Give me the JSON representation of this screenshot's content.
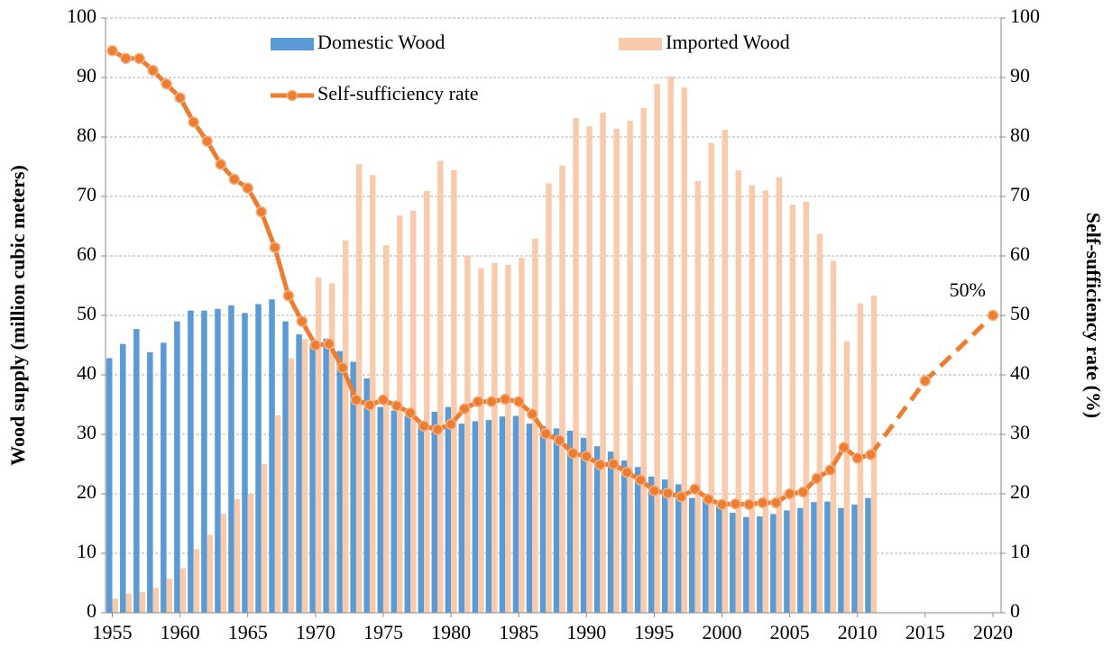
{
  "chart_data": {
    "type": "bar",
    "x": [
      1955,
      1956,
      1957,
      1958,
      1959,
      1960,
      1961,
      1962,
      1963,
      1964,
      1965,
      1966,
      1967,
      1968,
      1969,
      1970,
      1971,
      1972,
      1973,
      1974,
      1975,
      1976,
      1977,
      1978,
      1979,
      1980,
      1981,
      1982,
      1983,
      1984,
      1985,
      1986,
      1987,
      1988,
      1989,
      1990,
      1991,
      1992,
      1993,
      1994,
      1995,
      1996,
      1997,
      1998,
      1999,
      2000,
      2001,
      2002,
      2003,
      2004,
      2005,
      2006,
      2007,
      2008,
      2009,
      2010,
      2011
    ],
    "series": [
      {
        "name": "Domestic Wood",
        "type": "bar",
        "color": "#5b9bd5",
        "values": [
          42.8,
          45.2,
          47.7,
          43.8,
          45.4,
          49.0,
          50.8,
          50.8,
          51.1,
          51.7,
          50.4,
          51.9,
          52.7,
          49.0,
          46.8,
          45.4,
          46.1,
          44.0,
          42.2,
          39.4,
          34.6,
          34.0,
          33.1,
          32.0,
          33.8,
          34.6,
          31.8,
          32.2,
          32.4,
          33.0,
          33.1,
          31.8,
          31.4,
          31.0,
          30.6,
          29.4,
          28.0,
          27.1,
          25.6,
          24.5,
          22.9,
          22.4,
          21.6,
          19.3,
          19.1,
          18.0,
          16.8,
          16.1,
          16.2,
          16.6,
          17.2,
          17.6,
          18.6,
          18.7,
          17.6,
          18.2,
          19.3
        ]
      },
      {
        "name": "Imported Wood",
        "type": "bar",
        "color": "#f8cbad",
        "values": [
          2.4,
          3.2,
          3.5,
          4.2,
          5.7,
          7.5,
          10.7,
          13.1,
          16.6,
          19.1,
          20.0,
          25.0,
          33.2,
          42.8,
          46.0,
          56.4,
          55.4,
          62.6,
          75.4,
          73.6,
          61.8,
          66.8,
          67.6,
          70.9,
          76.0,
          74.4,
          60.0,
          57.9,
          58.8,
          58.5,
          59.7,
          62.9,
          72.2,
          75.2,
          83.2,
          81.8,
          84.1,
          81.4,
          82.7,
          84.9,
          88.9,
          90.2,
          88.3,
          72.6,
          79.0,
          81.2,
          74.4,
          71.9,
          71.0,
          73.2,
          68.6,
          69.1,
          63.7,
          59.2,
          45.6,
          52.0,
          53.3
        ]
      },
      {
        "name": "Self-sufficiency rate",
        "type": "line",
        "axis": "y2",
        "color": "#ed7d31",
        "values": [
          94.5,
          93.2,
          93.2,
          91.2,
          88.9,
          86.6,
          82.5,
          79.3,
          75.4,
          72.9,
          71.4,
          67.4,
          61.4,
          53.3,
          49.0,
          45.0,
          45.2,
          41.2,
          35.8,
          34.9,
          35.8,
          34.8,
          33.6,
          31.4,
          30.8,
          31.7,
          34.3,
          35.5,
          35.5,
          35.9,
          35.5,
          33.4,
          30.1,
          29.0,
          26.8,
          26.3,
          24.9,
          25.0,
          23.6,
          22.3,
          20.5,
          20.1,
          19.5,
          20.8,
          19.1,
          18.2,
          18.3,
          18.2,
          18.5,
          18.5,
          20.0,
          20.3,
          22.6,
          24.0,
          27.8,
          26.0,
          26.6
        ]
      },
      {
        "type": "line",
        "axis": "y2",
        "color": "#ed7d31",
        "dashed": true,
        "x": [
          2011,
          2015,
          2020
        ],
        "values": [
          26.6,
          39,
          50
        ],
        "value_labels": [
          null,
          null,
          "50%"
        ]
      }
    ],
    "xlim": [
      1954.5,
      2020.6
    ],
    "xticks": [
      1955,
      1960,
      1965,
      1970,
      1975,
      1980,
      1985,
      1990,
      1995,
      2000,
      2005,
      2010,
      2015,
      2020
    ],
    "ylim": [
      0,
      100
    ],
    "yticks": [
      0,
      10,
      20,
      30,
      40,
      50,
      60,
      70,
      80,
      90,
      100
    ],
    "y2lim": [
      0,
      100
    ],
    "y2ticks": [
      0,
      10,
      20,
      30,
      40,
      50,
      60,
      70,
      80,
      90,
      100
    ],
    "ylabel": "Wood supply (million cubic meters)",
    "y2label": "Self-sufficiency rate (%)",
    "grid": true
  }
}
